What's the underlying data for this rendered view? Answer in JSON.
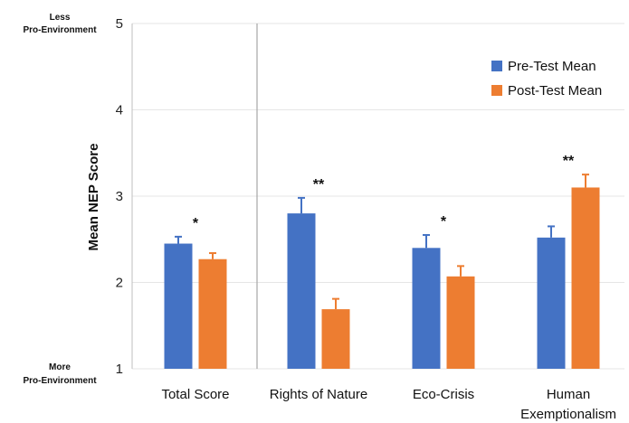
{
  "chart_data": {
    "type": "bar",
    "title": "",
    "xlabel": "",
    "ylabel": "Mean NEP Score",
    "ylim": [
      1,
      5
    ],
    "yticks": [
      1,
      2,
      3,
      4,
      5
    ],
    "grid": true,
    "legend_position": "top-right",
    "top_anchor": {
      "line1": "Less",
      "line2": "Pro-Environment"
    },
    "bottom_anchor": {
      "line1": "More",
      "line2": "Pro-Environment"
    },
    "categories": [
      {
        "line1": "Total Score",
        "line2": ""
      },
      {
        "line1": "Rights of Nature",
        "line2": ""
      },
      {
        "line1": "Eco-Crisis",
        "line2": ""
      },
      {
        "line1": "Human",
        "line2": "Exemptionalism"
      }
    ],
    "significance": [
      "*",
      "**",
      "*",
      "**"
    ],
    "series": [
      {
        "name": "Pre-Test  Mean",
        "color": "#4472C4",
        "values": [
          2.45,
          2.8,
          2.4,
          2.52
        ],
        "errors": [
          0.08,
          0.18,
          0.15,
          0.13
        ]
      },
      {
        "name": "Post-Test Mean",
        "color": "#ED7D31",
        "values": [
          2.27,
          1.69,
          2.07,
          3.1
        ],
        "errors": [
          0.07,
          0.12,
          0.12,
          0.15
        ]
      }
    ]
  }
}
